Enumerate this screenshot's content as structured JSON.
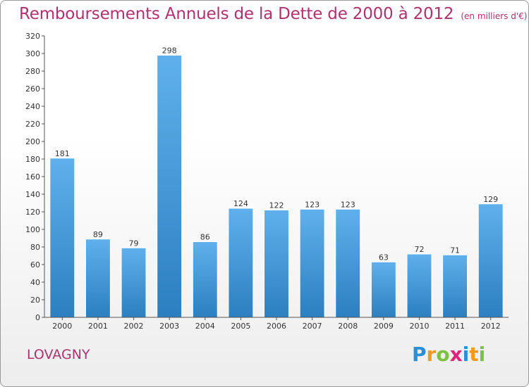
{
  "header": {
    "title": "Remboursements Annuels de la Dette de 2000 à 2012",
    "subtitle": "(en milliers d'€)"
  },
  "footer": {
    "place": "LOVAGNY",
    "logo_letters": [
      "P",
      "r",
      "o",
      "x",
      "i",
      "t",
      "i"
    ],
    "logo_colors": [
      "#2c8fd6",
      "#f29a1c",
      "#7cc242",
      "#e3237b",
      "#2c8fd6",
      "#f29a1c",
      "#7cc242"
    ]
  },
  "chart_data": {
    "type": "bar",
    "categories": [
      "2000",
      "2001",
      "2002",
      "2003",
      "2004",
      "2005",
      "2006",
      "2007",
      "2008",
      "2009",
      "2010",
      "2011",
      "2012"
    ],
    "values": [
      181,
      89,
      79,
      298,
      86,
      124,
      122,
      123,
      123,
      63,
      72,
      71,
      129
    ],
    "ylim": [
      0,
      320
    ],
    "yticks": [
      0,
      20,
      40,
      60,
      80,
      100,
      120,
      140,
      160,
      180,
      200,
      220,
      240,
      260,
      280,
      300,
      320
    ],
    "grid": false,
    "colors": {
      "bar_light": "#5fb0ec",
      "bar_dark": "#2c7fc0",
      "axis": "#555555"
    }
  }
}
